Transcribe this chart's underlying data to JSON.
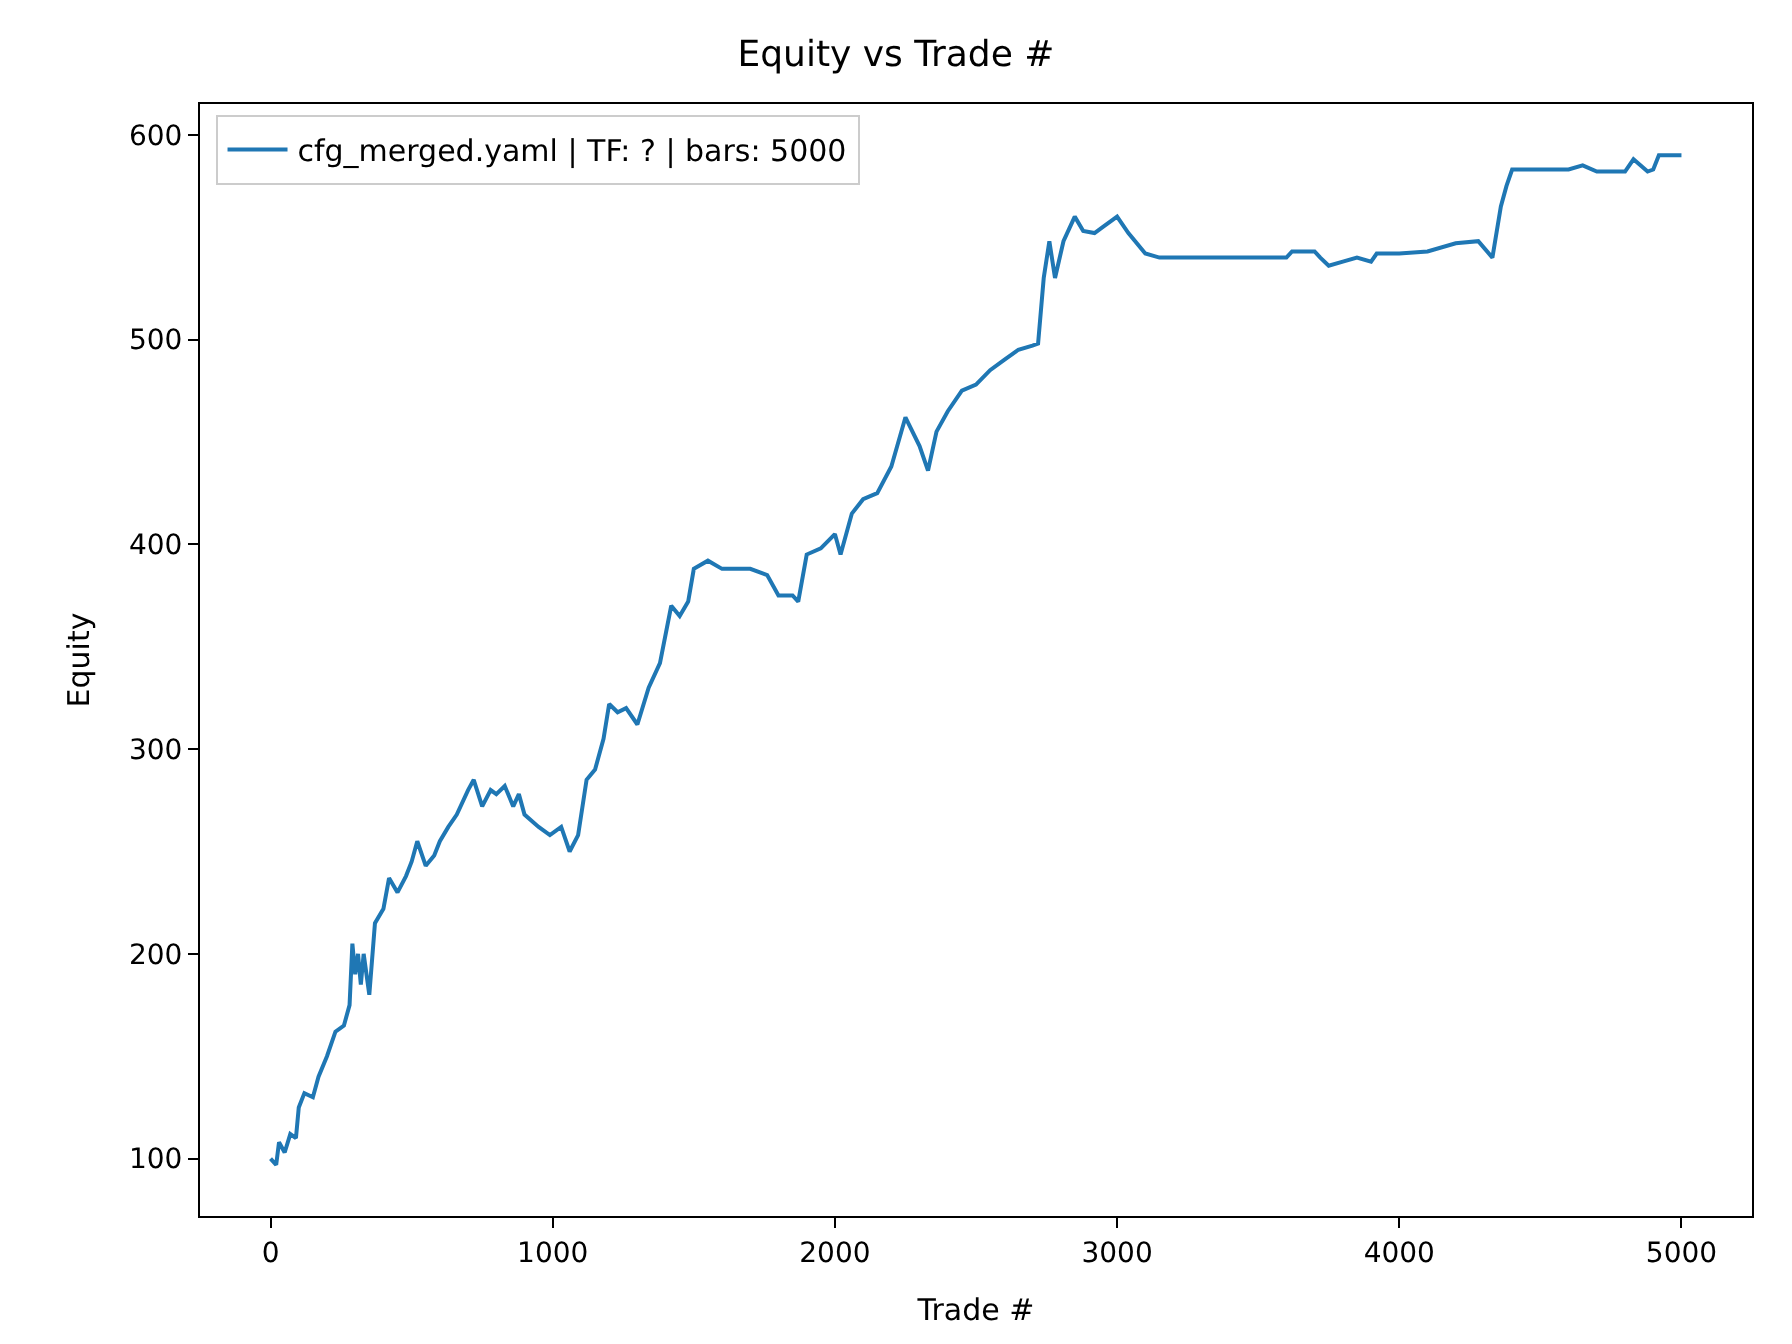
{
  "chart_data": {
    "type": "line",
    "title": "Equity vs Trade #",
    "xlabel": "Trade #",
    "ylabel": "Equity",
    "xlim": [
      -250,
      5250
    ],
    "xticks": [
      0,
      1000,
      2000,
      3000,
      4000,
      5000
    ],
    "ylim": [
      72,
      615
    ],
    "yticks": [
      100,
      200,
      300,
      400,
      500,
      600
    ],
    "legend": "top left",
    "marker": "none",
    "line_style": "solid",
    "x": [
      0,
      20,
      30,
      50,
      70,
      90,
      100,
      120,
      150,
      170,
      200,
      230,
      260,
      280,
      290,
      300,
      310,
      320,
      330,
      350,
      370,
      400,
      420,
      450,
      480,
      500,
      520,
      550,
      580,
      600,
      630,
      660,
      700,
      720,
      750,
      780,
      800,
      830,
      860,
      880,
      900,
      950,
      990,
      1030,
      1060,
      1090,
      1120,
      1150,
      1180,
      1200,
      1230,
      1260,
      1300,
      1340,
      1380,
      1420,
      1450,
      1480,
      1500,
      1550,
      1600,
      1700,
      1760,
      1800,
      1850,
      1870,
      1900,
      1950,
      2000,
      2020,
      2060,
      2100,
      2150,
      2200,
      2250,
      2300,
      2330,
      2360,
      2400,
      2450,
      2500,
      2550,
      2600,
      2650,
      2700,
      2720,
      2740,
      2760,
      2780,
      2810,
      2850,
      2880,
      2920,
      2950,
      3000,
      3040,
      3100,
      3150,
      3600,
      3620,
      3700,
      3720,
      3750,
      3800,
      3850,
      3900,
      3920,
      4000,
      4100,
      4200,
      4280,
      4330,
      4360,
      4380,
      4400,
      4500,
      4600,
      4650,
      4700,
      4800,
      4830,
      4880,
      4900,
      4920,
      5000
    ],
    "series": [
      {
        "name": "cfg_merged.yaml | TF: ? | bars: 5000",
        "color": "#1f77b4",
        "values": [
          100,
          97,
          108,
          103,
          112,
          110,
          125,
          132,
          130,
          140,
          150,
          162,
          165,
          175,
          205,
          190,
          200,
          185,
          200,
          180,
          215,
          222,
          237,
          230,
          238,
          245,
          255,
          243,
          248,
          255,
          262,
          268,
          280,
          285,
          272,
          280,
          278,
          282,
          272,
          278,
          268,
          262,
          258,
          262,
          250,
          258,
          285,
          290,
          305,
          322,
          318,
          320,
          312,
          330,
          342,
          370,
          365,
          372,
          388,
          392,
          388,
          388,
          385,
          375,
          375,
          372,
          395,
          398,
          405,
          395,
          415,
          422,
          425,
          438,
          462,
          448,
          436,
          455,
          465,
          475,
          478,
          485,
          490,
          495,
          497,
          498,
          530,
          548,
          530,
          548,
          560,
          553,
          552,
          555,
          560,
          552,
          542,
          540,
          540,
          543,
          543,
          540,
          536,
          538,
          540,
          538,
          542,
          542,
          543,
          547,
          548,
          540,
          565,
          575,
          583,
          583,
          583,
          585,
          582,
          582,
          588,
          582,
          583,
          590,
          590
        ]
      }
    ]
  }
}
